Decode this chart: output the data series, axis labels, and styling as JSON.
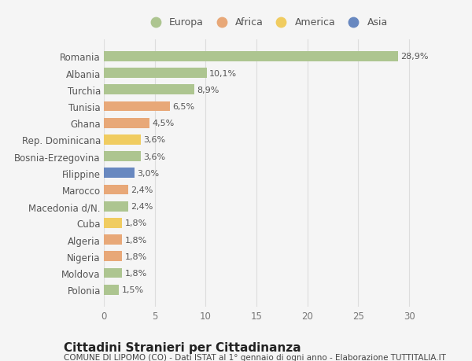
{
  "countries": [
    "Romania",
    "Albania",
    "Turchia",
    "Tunisia",
    "Ghana",
    "Rep. Dominicana",
    "Bosnia-Erzegovina",
    "Filippine",
    "Marocco",
    "Macedonia d/N.",
    "Cuba",
    "Algeria",
    "Nigeria",
    "Moldova",
    "Polonia"
  ],
  "values": [
    28.9,
    10.1,
    8.9,
    6.5,
    4.5,
    3.6,
    3.6,
    3.0,
    2.4,
    2.4,
    1.8,
    1.8,
    1.8,
    1.8,
    1.5
  ],
  "labels": [
    "28,9%",
    "10,1%",
    "8,9%",
    "6,5%",
    "4,5%",
    "3,6%",
    "3,6%",
    "3,0%",
    "2,4%",
    "2,4%",
    "1,8%",
    "1,8%",
    "1,8%",
    "1,8%",
    "1,5%"
  ],
  "continent": [
    "Europa",
    "Europa",
    "Europa",
    "Africa",
    "Africa",
    "America",
    "Europa",
    "Asia",
    "Africa",
    "Europa",
    "America",
    "Africa",
    "Africa",
    "Europa",
    "Europa"
  ],
  "colors": {
    "Europa": "#adc590",
    "Africa": "#e8a878",
    "America": "#f0cc60",
    "Asia": "#6888c0"
  },
  "legend_order": [
    "Europa",
    "Africa",
    "America",
    "Asia"
  ],
  "xlim": [
    0,
    32
  ],
  "xticks": [
    0,
    5,
    10,
    15,
    20,
    25,
    30
  ],
  "title": "Cittadini Stranieri per Cittadinanza",
  "subtitle": "COMUNE DI LIPOMO (CO) - Dati ISTAT al 1° gennaio di ogni anno - Elaborazione TUTTITALIA.IT",
  "bg_color": "#f5f5f5",
  "grid_color": "#dddddd",
  "bar_height": 0.6,
  "label_fontsize": 8,
  "tick_fontsize": 8.5,
  "title_fontsize": 11,
  "subtitle_fontsize": 7.5
}
